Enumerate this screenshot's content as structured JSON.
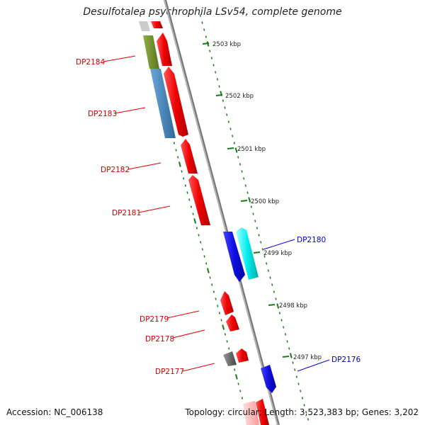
{
  "title": "Desulfotalea psychrophila LSv54, complete genome",
  "footer": {
    "accession": "Accession: NC_006138",
    "summary": "Topology: circular; Length: 3,523,383 bp; Genes: 3,202"
  },
  "colors": {
    "forward_gene": "#ee1111",
    "reverse_gene": "#1111dd",
    "cyan_gene": "#00e5e5",
    "olive_gene": "#6e8b2a",
    "steel_gene": "#4682b4",
    "grey_gene": "#666666",
    "backbone": "#888888",
    "tick": "#1a7a1a",
    "label_forward": "#cc0000",
    "label_reverse": "#0000cc"
  },
  "scale_labels": [
    "2503 kbp",
    "2502 kbp",
    "2501 kbp",
    "2500 kbp",
    "2499 kbp",
    "2498 kbp",
    "2497 kbp"
  ],
  "gene_labels": {
    "DP2184": "DP2184",
    "DP2183": "DP2183",
    "DP2182": "DP2182",
    "DP2181": "DP2181",
    "DP2180": "DP2180",
    "DP2179": "DP2179",
    "DP2178": "DP2178",
    "DP2177": "DP2177",
    "DP2176": "DP2176"
  }
}
